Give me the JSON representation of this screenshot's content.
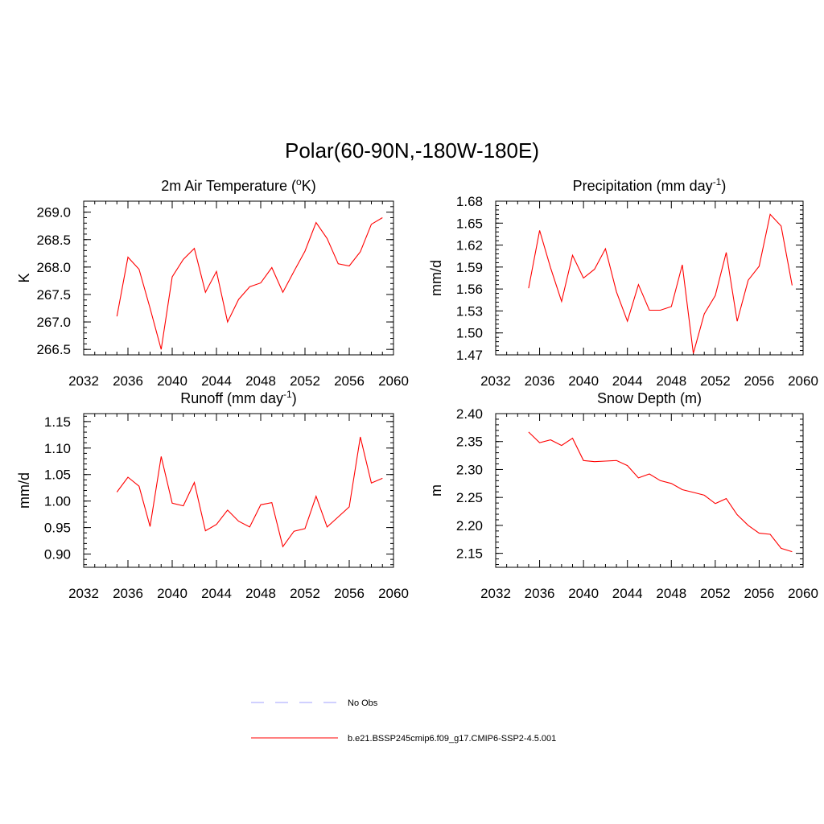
{
  "figure": {
    "title": "Polar(60-90N,-180W-180E)"
  },
  "legend": {
    "entries": [
      {
        "label": "No Obs",
        "color": "#a0a0ff",
        "style": "dashed"
      },
      {
        "label": "b.e21.BSSP245cmip6.f09_g17.CMIP6-SSP2-4.5.001",
        "color": "#ff0000",
        "style": "solid"
      }
    ]
  },
  "chart_data": [
    {
      "type": "line",
      "title_main": "2m Air Temperature (",
      "title_sup": "o",
      "title_tail": "K)",
      "xlabel": "",
      "ylabel": "K",
      "xlim": [
        2032,
        2060
      ],
      "ylim": [
        266.4,
        269.2
      ],
      "xticks": [
        2032,
        2036,
        2040,
        2044,
        2048,
        2052,
        2056,
        2060
      ],
      "yticks": [
        "266.5",
        "267.0",
        "267.5",
        "268.0",
        "268.5",
        "269.0"
      ],
      "series": [
        {
          "color": "#ff0000",
          "x": [
            2035,
            2036,
            2037,
            2038,
            2039,
            2040,
            2041,
            2042,
            2043,
            2044,
            2045,
            2046,
            2047,
            2048,
            2049,
            2050,
            2051,
            2052,
            2053,
            2054,
            2055,
            2056,
            2057,
            2058,
            2059
          ],
          "y": [
            267.1,
            268.18,
            267.96,
            267.25,
            266.5,
            267.82,
            268.14,
            268.34,
            267.54,
            267.92,
            267.0,
            267.41,
            267.64,
            267.71,
            267.99,
            267.54,
            267.92,
            268.29,
            268.81,
            268.52,
            268.06,
            268.02,
            268.28,
            268.78,
            268.9
          ]
        }
      ]
    },
    {
      "type": "line",
      "title_main": "Precipitation (mm day",
      "title_sup": "-1",
      "title_tail": ")",
      "xlabel": "",
      "ylabel": "mm/d",
      "xlim": [
        2032,
        2060
      ],
      "ylim": [
        1.47,
        1.68
      ],
      "xticks": [
        2032,
        2036,
        2040,
        2044,
        2048,
        2052,
        2056,
        2060
      ],
      "yticks": [
        "1.47",
        "1.50",
        "1.53",
        "1.56",
        "1.59",
        "1.62",
        "1.65",
        "1.68"
      ],
      "series": [
        {
          "color": "#ff0000",
          "x": [
            2035,
            2036,
            2037,
            2038,
            2039,
            2040,
            2041,
            2042,
            2043,
            2044,
            2045,
            2046,
            2047,
            2048,
            2049,
            2050,
            2051,
            2052,
            2053,
            2054,
            2055,
            2056,
            2057,
            2058,
            2059
          ],
          "y": [
            1.561,
            1.64,
            1.589,
            1.543,
            1.606,
            1.575,
            1.587,
            1.615,
            1.556,
            1.516,
            1.566,
            1.531,
            1.531,
            1.536,
            1.593,
            1.472,
            1.526,
            1.551,
            1.61,
            1.516,
            1.572,
            1.591,
            1.662,
            1.646,
            1.565
          ]
        }
      ]
    },
    {
      "type": "line",
      "title_main": "Runoff (mm day",
      "title_sup": "-1",
      "title_tail": ")",
      "xlabel": "",
      "ylabel": "mm/d",
      "xlim": [
        2032,
        2060
      ],
      "ylim": [
        0.875,
        1.165
      ],
      "xticks": [
        2032,
        2036,
        2040,
        2044,
        2048,
        2052,
        2056,
        2060
      ],
      "yticks": [
        "0.90",
        "0.95",
        "1.00",
        "1.05",
        "1.10",
        "1.15"
      ],
      "series": [
        {
          "color": "#ff0000",
          "x": [
            2035,
            2036,
            2037,
            2038,
            2039,
            2040,
            2041,
            2042,
            2043,
            2044,
            2045,
            2046,
            2047,
            2048,
            2049,
            2050,
            2051,
            2052,
            2053,
            2054,
            2055,
            2056,
            2057,
            2058,
            2059
          ],
          "y": [
            1.017,
            1.045,
            1.028,
            0.952,
            1.084,
            0.996,
            0.991,
            1.035,
            0.944,
            0.956,
            0.983,
            0.962,
            0.951,
            0.993,
            0.997,
            0.914,
            0.943,
            0.948,
            1.009,
            0.951,
            0.97,
            0.989,
            1.121,
            1.034,
            1.043
          ]
        }
      ]
    },
    {
      "type": "line",
      "title_main": "Snow Depth (m)",
      "title_sup": "",
      "title_tail": "",
      "xlabel": "",
      "ylabel": "m",
      "xlim": [
        2032,
        2060
      ],
      "ylim": [
        2.125,
        2.4
      ],
      "xticks": [
        2032,
        2036,
        2040,
        2044,
        2048,
        2052,
        2056,
        2060
      ],
      "yticks": [
        "2.15",
        "2.20",
        "2.25",
        "2.30",
        "2.35",
        "2.40"
      ],
      "series": [
        {
          "color": "#ff0000",
          "x": [
            2035,
            2036,
            2037,
            2038,
            2039,
            2040,
            2041,
            2042,
            2043,
            2044,
            2045,
            2046,
            2047,
            2048,
            2049,
            2050,
            2051,
            2052,
            2053,
            2054,
            2055,
            2056,
            2057,
            2058,
            2059
          ],
          "y": [
            2.367,
            2.348,
            2.353,
            2.343,
            2.356,
            2.316,
            2.314,
            2.315,
            2.316,
            2.307,
            2.285,
            2.292,
            2.28,
            2.275,
            2.264,
            2.259,
            2.254,
            2.239,
            2.248,
            2.219,
            2.2,
            2.186,
            2.184,
            2.159,
            2.153
          ]
        }
      ]
    }
  ]
}
